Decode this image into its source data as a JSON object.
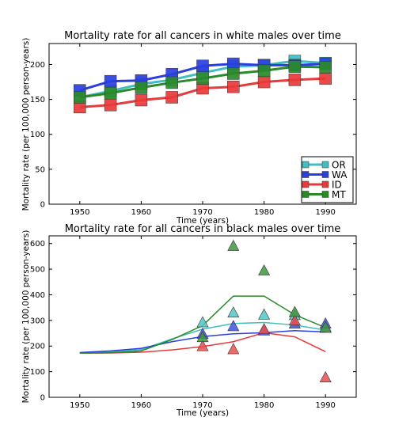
{
  "chart_data": [
    {
      "type": "line",
      "title": "Mortality rate for all cancers in white males over time",
      "xlabel": "Time (years)",
      "ylabel": "Mortality rate (per 100,000 person-years)",
      "xlim": [
        1945,
        1995
      ],
      "ylim": [
        0,
        230
      ],
      "xticks": [
        1950,
        1960,
        1970,
        1980,
        1990
      ],
      "yticks": [
        0,
        50,
        100,
        150,
        200
      ],
      "grid": false,
      "legend_position": "lower-right",
      "marker": "square",
      "series": [
        {
          "name": "OR",
          "color": "#3fbfbf",
          "x": [
            1950,
            1955,
            1960,
            1965,
            1970,
            1975,
            1980,
            1985,
            1990
          ],
          "y": [
            153,
            162,
            172,
            178,
            188,
            197,
            199,
            205,
            202
          ]
        },
        {
          "name": "WA",
          "color": "#2a3fe0",
          "x": [
            1950,
            1955,
            1960,
            1965,
            1970,
            1975,
            1980,
            1985,
            1990
          ],
          "y": [
            163,
            176,
            177,
            186,
            198,
            201,
            199,
            199,
            201
          ]
        },
        {
          "name": "ID",
          "color": "#e83a3a",
          "x": [
            1950,
            1955,
            1960,
            1965,
            1970,
            1975,
            1980,
            1985,
            1990
          ],
          "y": [
            139,
            142,
            149,
            153,
            166,
            168,
            175,
            178,
            180
          ]
        },
        {
          "name": "MT",
          "color": "#2a8a2a",
          "x": [
            1950,
            1955,
            1960,
            1965,
            1970,
            1975,
            1980,
            1985,
            1990
          ],
          "y": [
            153,
            159,
            167,
            174,
            180,
            187,
            191,
            197,
            196
          ]
        }
      ]
    },
    {
      "type": "line",
      "title": "Mortality rate for all cancers in black males over time",
      "xlabel": "Time (years)",
      "ylabel": "Mortality rate (per 100,000 person-years)",
      "xlim": [
        1945,
        1995
      ],
      "ylim": [
        0,
        630
      ],
      "xticks": [
        1950,
        1960,
        1970,
        1980,
        1990
      ],
      "yticks": [
        0,
        100,
        200,
        300,
        400,
        500,
        600
      ],
      "grid": false,
      "marker": "triangle",
      "series": [
        {
          "name": "OR",
          "color": "#3fbfbf",
          "line": {
            "x": [
              1950,
              1955,
              1960,
              1965,
              1970,
              1975,
              1980,
              1985,
              1990
            ],
            "y": [
              173,
              178,
              186,
              228,
              266,
              288,
              292,
              282,
              262
            ]
          },
          "points": {
            "x": [
              1970,
              1975,
              1980,
              1985,
              1990
            ],
            "y": [
              290,
              328,
              320,
              318,
              268
            ]
          }
        },
        {
          "name": "WA",
          "color": "#2a3fe0",
          "line": {
            "x": [
              1950,
              1955,
              1960,
              1965,
              1970,
              1975,
              1980,
              1985,
              1990
            ],
            "y": [
              175,
              181,
              191,
              217,
              237,
              248,
              252,
              260,
              255
            ]
          },
          "points": {
            "x": [
              1970,
              1975,
              1980,
              1985,
              1990
            ],
            "y": [
              245,
              275,
              258,
              285,
              285
            ]
          }
        },
        {
          "name": "ID",
          "color": "#e83a3a",
          "line": {
            "x": [
              1950,
              1955,
              1960,
              1965,
              1970,
              1975,
              1980,
              1985,
              1990
            ],
            "y": [
              172,
              173,
              176,
              185,
              198,
              217,
              252,
              236,
              178
            ]
          },
          "points": {
            "x": [
              1970,
              1975,
              1980,
              1985,
              1990
            ],
            "y": [
              197,
              185,
              263,
              297,
              75
            ]
          }
        },
        {
          "name": "MT",
          "color": "#2a8a2a",
          "line": {
            "x": [
              1950,
              1955,
              1960,
              1965,
              1970,
              1975,
              1980,
              1985,
              1990
            ],
            "y": [
              172,
              174,
              181,
              225,
              280,
              395,
              395,
              322,
              272
            ]
          },
          "points": {
            "x": [
              1970,
              1975,
              1980,
              1985,
              1990
            ],
            "y": [
              232,
              588,
              492,
              330,
              272
            ]
          }
        }
      ]
    }
  ]
}
